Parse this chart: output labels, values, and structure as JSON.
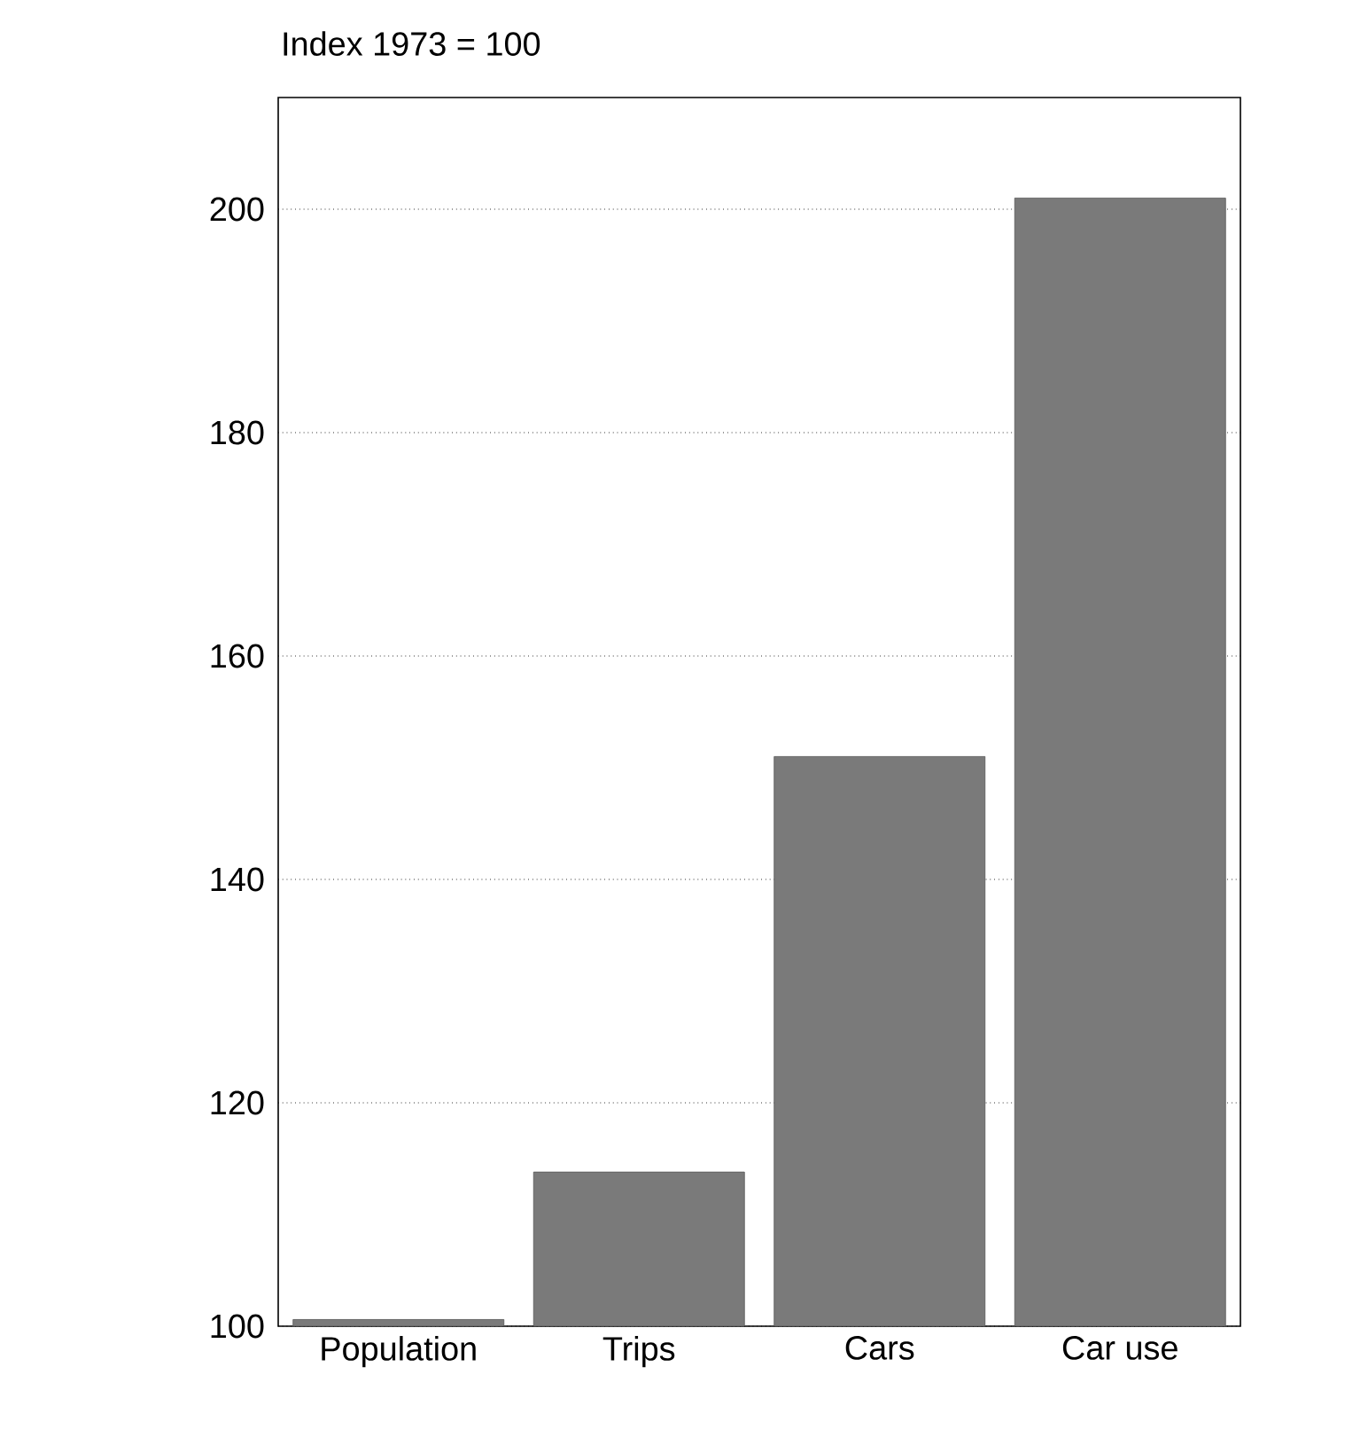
{
  "chart_data": {
    "type": "bar",
    "title": "Index 1973 = 100",
    "categories": [
      "Population",
      "Trips",
      "Cars",
      "Car use"
    ],
    "values": [
      100.6,
      113.8,
      151,
      201
    ],
    "color": "#7a7a7a",
    "ylim": [
      100,
      210
    ],
    "yticks": [
      100,
      120,
      140,
      160,
      180,
      200
    ],
    "grid": "y"
  }
}
